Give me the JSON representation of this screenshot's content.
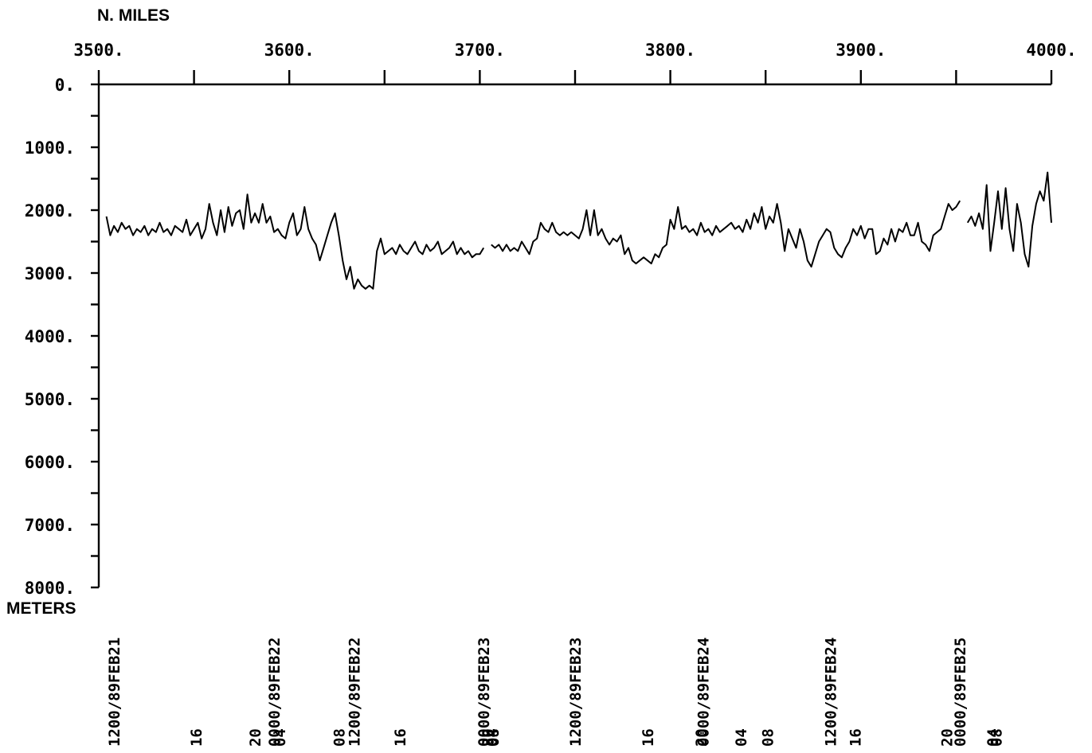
{
  "chart_data": {
    "type": "line",
    "title": "",
    "xlabel": "N. MILES",
    "ylabel": "METERS",
    "xlim": [
      3500,
      4000
    ],
    "ylim": [
      0,
      8000
    ],
    "y_inverted": true,
    "x_axis_position": "top",
    "x_ticks": [
      "3500.",
      "3600.",
      "3700.",
      "3800.",
      "3900.",
      "4000."
    ],
    "x_tick_values": [
      3500,
      3600,
      3700,
      3800,
      3900,
      4000
    ],
    "y_ticks": [
      "0.",
      "1000.",
      "2000.",
      "3000.",
      "4000.",
      "5000.",
      "6000.",
      "7000.",
      "8000."
    ],
    "y_tick_values": [
      0,
      1000,
      2000,
      3000,
      4000,
      5000,
      6000,
      7000,
      8000
    ],
    "time_labels": [
      {
        "x": 3508,
        "text": "1200/89FEB21"
      },
      {
        "x": 3551,
        "text": "16"
      },
      {
        "x": 3582,
        "text": "20"
      },
      {
        "x": 3592,
        "text": "0000/89FEB22"
      },
      {
        "x": 3595,
        "text": "04"
      },
      {
        "x": 3626,
        "text": "08"
      },
      {
        "x": 3634,
        "text": "1200/89FEB22"
      },
      {
        "x": 3658,
        "text": "16"
      },
      {
        "x": 3702,
        "text": "0000/89FEB23"
      },
      {
        "x": 3704,
        "text": "20"
      },
      {
        "x": 3706,
        "text": "04"
      },
      {
        "x": 3707,
        "text": "08"
      },
      {
        "x": 3750,
        "text": "1200/89FEB23"
      },
      {
        "x": 3788,
        "text": "16"
      },
      {
        "x": 3817,
        "text": "0000/89FEB24"
      },
      {
        "x": 3816,
        "text": "20"
      },
      {
        "x": 3837,
        "text": "04"
      },
      {
        "x": 3851,
        "text": "08"
      },
      {
        "x": 3884,
        "text": "1200/89FEB24"
      },
      {
        "x": 3897,
        "text": "16"
      },
      {
        "x": 3945,
        "text": "20"
      },
      {
        "x": 3952,
        "text": "0000/89FEB25"
      },
      {
        "x": 3969,
        "text": "04"
      },
      {
        "x": 3971,
        "text": "08"
      }
    ],
    "series": [
      {
        "color": "#000000",
        "segments": [
          {
            "x": [
              3504,
              3506,
              3508,
              3510,
              3512,
              3514,
              3516,
              3518,
              3520,
              3522,
              3524,
              3526,
              3528,
              3530,
              3532,
              3534,
              3536,
              3538,
              3540,
              3542,
              3544,
              3546,
              3548,
              3550,
              3552,
              3554,
              3556,
              3558,
              3560,
              3562,
              3564,
              3566,
              3568,
              3570,
              3572,
              3574,
              3576,
              3578,
              3580,
              3582,
              3584,
              3586,
              3588,
              3590,
              3592,
              3594,
              3596,
              3598,
              3600,
              3602,
              3604,
              3606,
              3608,
              3610,
              3612,
              3614,
              3616,
              3618,
              3620,
              3622,
              3624,
              3626,
              3628,
              3630,
              3632,
              3634,
              3636,
              3638,
              3640,
              3642,
              3644,
              3646,
              3648,
              3650,
              3652,
              3654,
              3656,
              3658,
              3660,
              3662,
              3664,
              3666,
              3668,
              3670,
              3672,
              3674,
              3676,
              3678,
              3680,
              3682,
              3684,
              3686,
              3688,
              3690,
              3692,
              3694,
              3696,
              3698,
              3700,
              3702
            ],
            "y": [
              2100,
              2400,
              2250,
              2350,
              2200,
              2300,
              2250,
              2400,
              2300,
              2350,
              2250,
              2400,
              2300,
              2350,
              2200,
              2350,
              2300,
              2400,
              2250,
              2300,
              2350,
              2150,
              2400,
              2300,
              2200,
              2450,
              2300,
              1900,
              2200,
              2400,
              2000,
              2350,
              1950,
              2250,
              2050,
              2000,
              2300,
              1750,
              2200,
              2050,
              2200,
              1900,
              2200,
              2100,
              2350,
              2300,
              2400,
              2450,
              2200,
              2050,
              2400,
              2300,
              1950,
              2300,
              2450,
              2550,
              2800,
              2600,
              2400,
              2200,
              2050,
              2400,
              2800,
              3100,
              2900,
              3250,
              3100,
              3200,
              3250,
              3200,
              3250,
              2650,
              2450,
              2700,
              2650,
              2600,
              2700,
              2550,
              2650,
              2700,
              2600,
              2500,
              2650,
              2700,
              2550,
              2650,
              2600,
              2500,
              2700,
              2650,
              2600,
              2500,
              2700,
              2600,
              2700,
              2650,
              2750,
              2700,
              2700,
              2600
            ]
          },
          {
            "x": [
              3706,
              3708,
              3710,
              3712,
              3714,
              3716,
              3718,
              3720,
              3722,
              3724,
              3726,
              3728,
              3730,
              3732,
              3734,
              3736,
              3738,
              3740,
              3742,
              3744,
              3746,
              3748,
              3750,
              3752,
              3754,
              3756,
              3758,
              3760,
              3762,
              3764,
              3766,
              3768,
              3770,
              3772,
              3774,
              3776,
              3778,
              3780,
              3782,
              3784,
              3786,
              3788,
              3790,
              3792,
              3794,
              3796,
              3798,
              3800,
              3802,
              3804,
              3806,
              3808,
              3810,
              3812,
              3814,
              3816,
              3818,
              3820,
              3822,
              3824,
              3826,
              3828,
              3830,
              3832,
              3834,
              3836,
              3838,
              3840,
              3842,
              3844,
              3846,
              3848,
              3850,
              3852,
              3854,
              3856,
              3858,
              3860,
              3862,
              3864,
              3866,
              3868,
              3870,
              3872,
              3874,
              3876,
              3878,
              3880,
              3882,
              3884,
              3886,
              3888,
              3890,
              3892,
              3894,
              3896,
              3898,
              3900,
              3902,
              3904,
              3906,
              3908,
              3910,
              3912,
              3914,
              3916,
              3918,
              3920,
              3922,
              3924,
              3926,
              3928,
              3930,
              3932,
              3934,
              3936,
              3938,
              3940,
              3942,
              3944,
              3946,
              3948,
              3950,
              3952
            ],
            "y": [
              2550,
              2600,
              2550,
              2650,
              2550,
              2650,
              2600,
              2650,
              2500,
              2600,
              2700,
              2500,
              2450,
              2200,
              2300,
              2350,
              2200,
              2350,
              2400,
              2350,
              2400,
              2350,
              2400,
              2450,
              2300,
              2000,
              2400,
              2000,
              2400,
              2300,
              2450,
              2550,
              2450,
              2500,
              2400,
              2700,
              2600,
              2800,
              2850,
              2800,
              2750,
              2800,
              2850,
              2700,
              2750,
              2600,
              2550,
              2150,
              2300,
              1950,
              2300,
              2250,
              2350,
              2300,
              2400,
              2200,
              2350,
              2300,
              2400,
              2250,
              2350,
              2300,
              2250,
              2200,
              2300,
              2250,
              2350,
              2150,
              2300,
              2050,
              2200,
              1950,
              2300,
              2100,
              2200,
              1900,
              2200,
              2650,
              2300,
              2450,
              2600,
              2300,
              2500,
              2800,
              2900,
              2700,
              2500,
              2400,
              2300,
              2350,
              2600,
              2700,
              2750,
              2600,
              2500,
              2300,
              2400,
              2250,
              2450,
              2300,
              2300,
              2700,
              2650,
              2450,
              2550,
              2300,
              2500,
              2300,
              2350,
              2200,
              2400,
              2400,
              2200,
              2500,
              2550,
              2650,
              2400,
              2350,
              2300,
              2100,
              1900,
              2000,
              1950,
              1850
            ]
          },
          {
            "x": [
              3956,
              3958,
              3960,
              3962,
              3964,
              3966,
              3968,
              3970,
              3972,
              3974,
              3976,
              3978,
              3980,
              3982,
              3984,
              3986,
              3988,
              3990,
              3992,
              3994,
              3996,
              3998,
              4000
            ],
            "y": [
              2200,
              2100,
              2250,
              2050,
              2300,
              1600,
              2650,
              2200,
              1700,
              2300,
              1650,
              2300,
              2650,
              1900,
              2200,
              2700,
              2900,
              2250,
              1900,
              1700,
              1850,
              1400,
              2200
            ]
          }
        ]
      }
    ]
  }
}
